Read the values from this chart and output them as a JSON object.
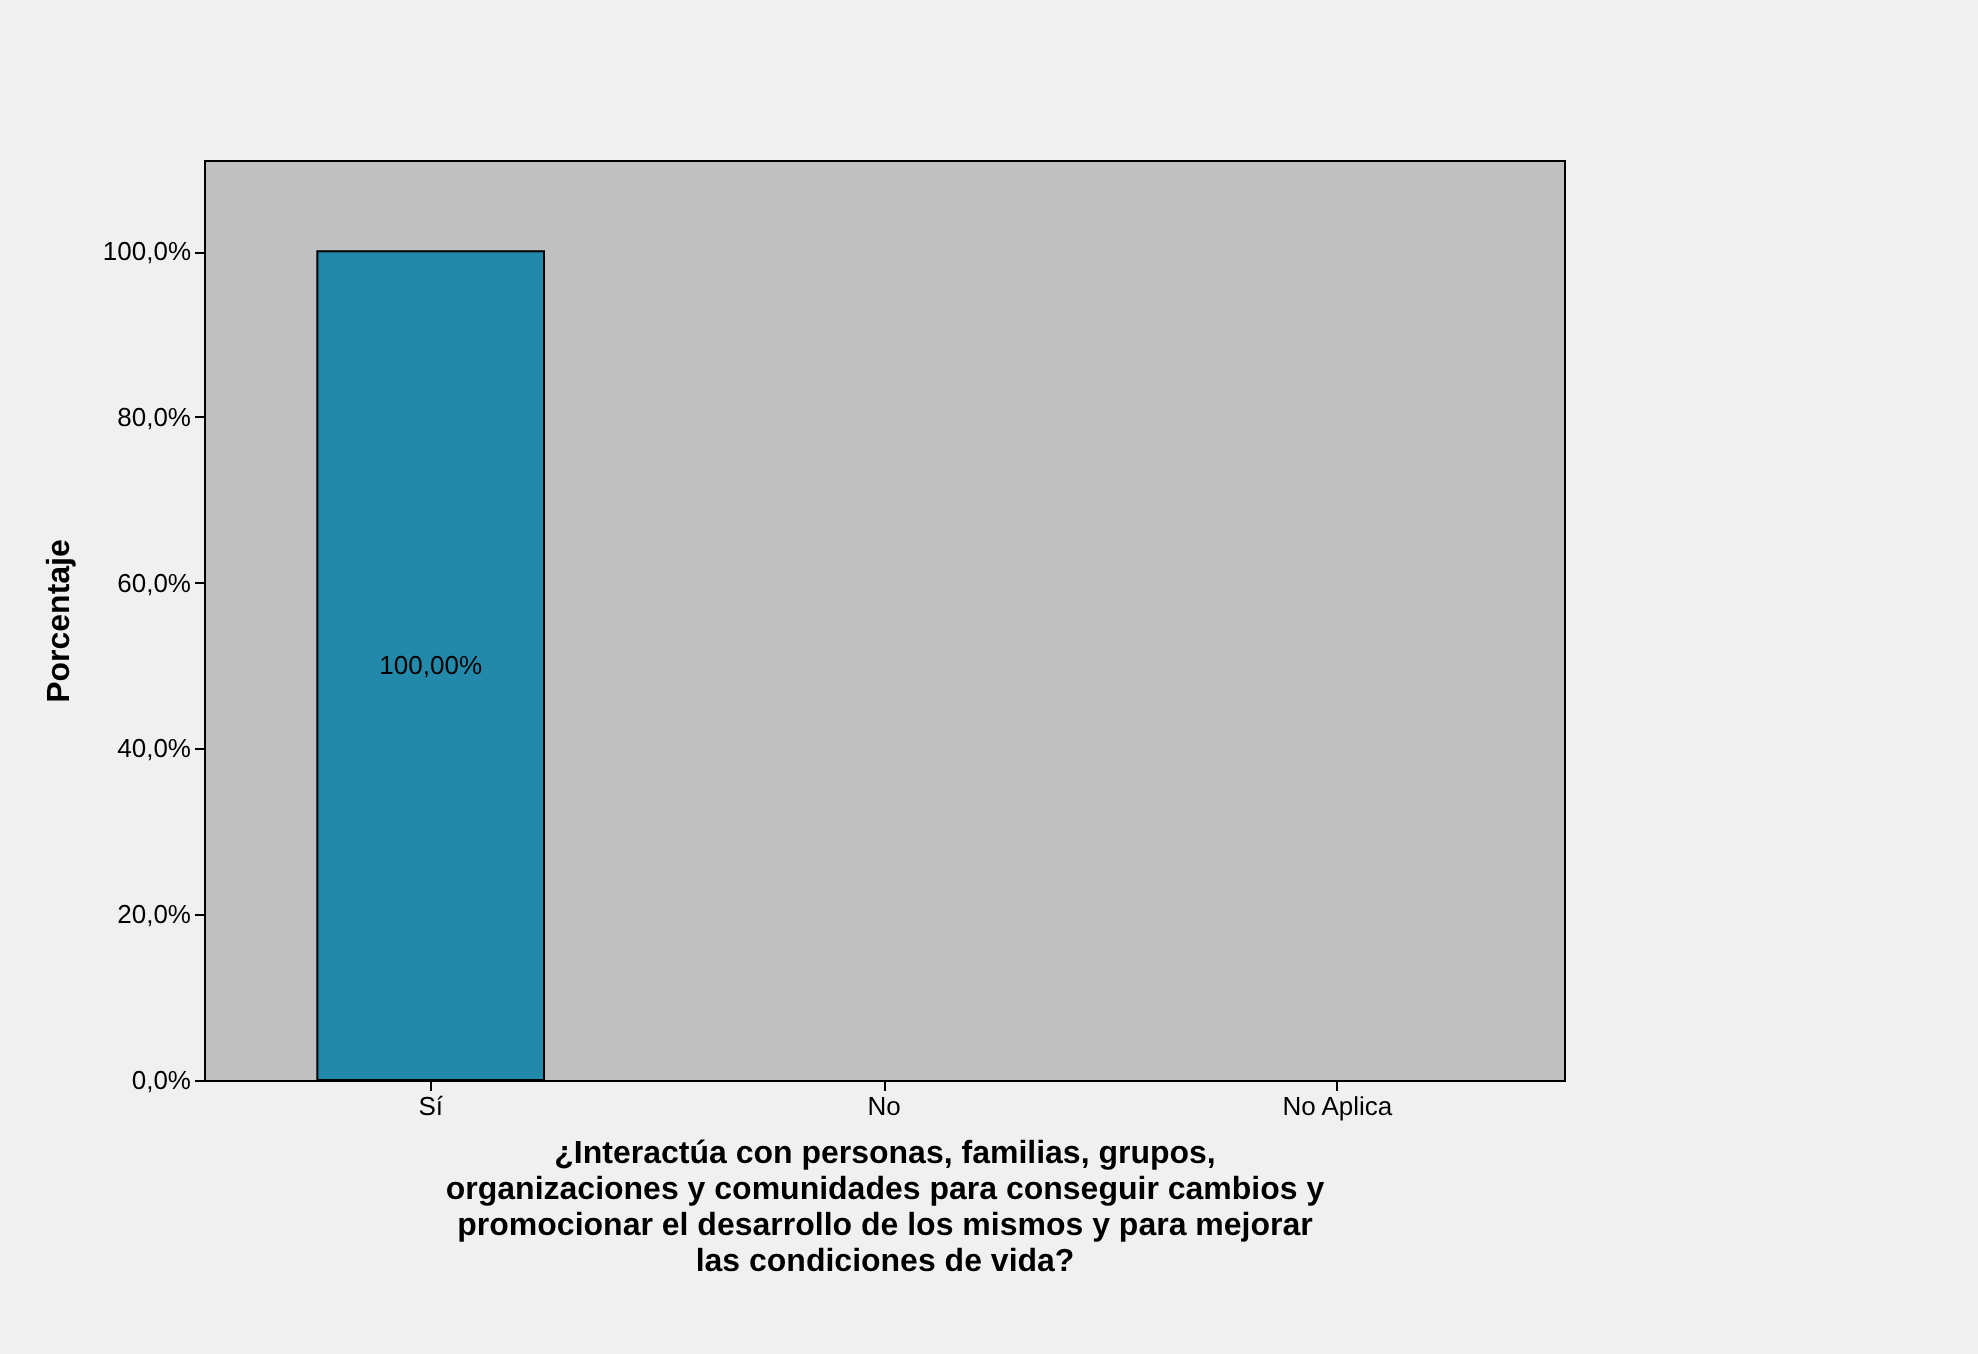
{
  "chart_data": {
    "type": "bar",
    "categories": [
      "Sí",
      "No",
      "No Aplica"
    ],
    "values": [
      100,
      0,
      0
    ],
    "color": "#2389aa",
    "value_labels": [
      "100,00%",
      null,
      null
    ],
    "ylabel": "Porcentaje",
    "xlabel": "¿Interactúa con personas, familias, grupos,\norganizaciones y  comunidades para conseguir cambios y\npromocionar el desarrollo de los mismos y para mejorar\nlas condiciones de vida?",
    "ylim": [
      0,
      111
    ],
    "yticks": [
      {
        "value": 0,
        "label": "0,0%"
      },
      {
        "value": 20,
        "label": "20,0%"
      },
      {
        "value": 40,
        "label": "40,0%"
      },
      {
        "value": 60,
        "label": "60,0%"
      },
      {
        "value": 80,
        "label": "80,0%"
      },
      {
        "value": 100,
        "label": "100,0%"
      }
    ],
    "grid": false
  }
}
